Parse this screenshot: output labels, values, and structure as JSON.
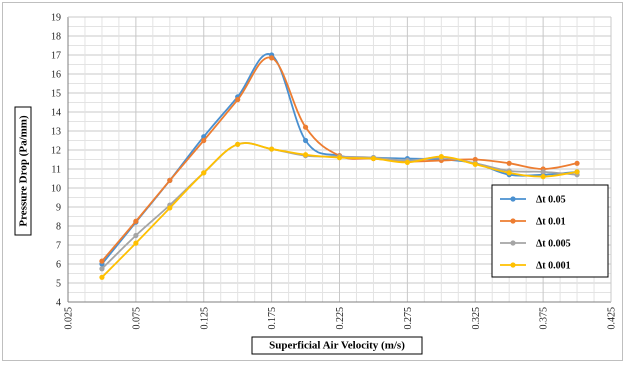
{
  "chart_data": {
    "type": "line",
    "title": "",
    "xlabel": "Superficial Air Velocity (m/s)",
    "ylabel": "Pressure Drop (Pa/mm)",
    "xlim": [
      0.025,
      0.425
    ],
    "ylim": [
      4,
      19
    ],
    "xticks": [
      "0.025",
      "0.075",
      "0.125",
      "0.175",
      "0.225",
      "0.275",
      "0.325",
      "0.375",
      "0.425"
    ],
    "yticks": [
      "4",
      "5",
      "6",
      "7",
      "8",
      "9",
      "10",
      "11",
      "12",
      "13",
      "14",
      "15",
      "16",
      "17",
      "18",
      "19"
    ],
    "grid": true,
    "legend_position": "right",
    "series": [
      {
        "name": "Δt 0.05",
        "color": "#4a90d0",
        "x": [
          0.05,
          0.075,
          0.1,
          0.125,
          0.15,
          0.175,
          0.2,
          0.225,
          0.25,
          0.275,
          0.3,
          0.325,
          0.35,
          0.375,
          0.4
        ],
        "y": [
          6.0,
          8.2,
          10.4,
          12.7,
          14.8,
          17.0,
          12.5,
          11.7,
          11.6,
          11.55,
          11.5,
          11.3,
          10.7,
          10.7,
          10.85
        ]
      },
      {
        "name": "Δt 0.01",
        "color": "#ed7d31",
        "x": [
          0.05,
          0.075,
          0.1,
          0.125,
          0.15,
          0.175,
          0.2,
          0.225,
          0.25,
          0.275,
          0.3,
          0.325,
          0.35,
          0.375,
          0.4
        ],
        "y": [
          6.15,
          8.25,
          10.4,
          12.5,
          14.65,
          16.85,
          13.2,
          11.7,
          11.55,
          11.4,
          11.45,
          11.5,
          11.3,
          11.0,
          11.3
        ]
      },
      {
        "name": "Δt 0.005",
        "color": "#a5a5a5",
        "x": [
          0.05,
          0.075,
          0.1,
          0.125,
          0.15,
          0.175,
          0.2,
          0.225,
          0.25,
          0.275,
          0.3,
          0.325,
          0.35,
          0.375,
          0.4
        ],
        "y": [
          5.75,
          7.5,
          9.1,
          10.8,
          12.3,
          12.05,
          11.7,
          11.65,
          11.6,
          11.45,
          11.6,
          11.3,
          10.9,
          10.85,
          10.7
        ]
      },
      {
        "name": "Δt 0.001",
        "color": "#ffc000",
        "x": [
          0.05,
          0.075,
          0.1,
          0.125,
          0.15,
          0.175,
          0.2,
          0.225,
          0.25,
          0.275,
          0.3,
          0.325,
          0.35,
          0.375,
          0.4
        ],
        "y": [
          5.3,
          7.1,
          8.95,
          10.8,
          12.3,
          12.05,
          11.75,
          11.6,
          11.55,
          11.35,
          11.65,
          11.25,
          10.8,
          10.6,
          10.85
        ]
      }
    ]
  }
}
